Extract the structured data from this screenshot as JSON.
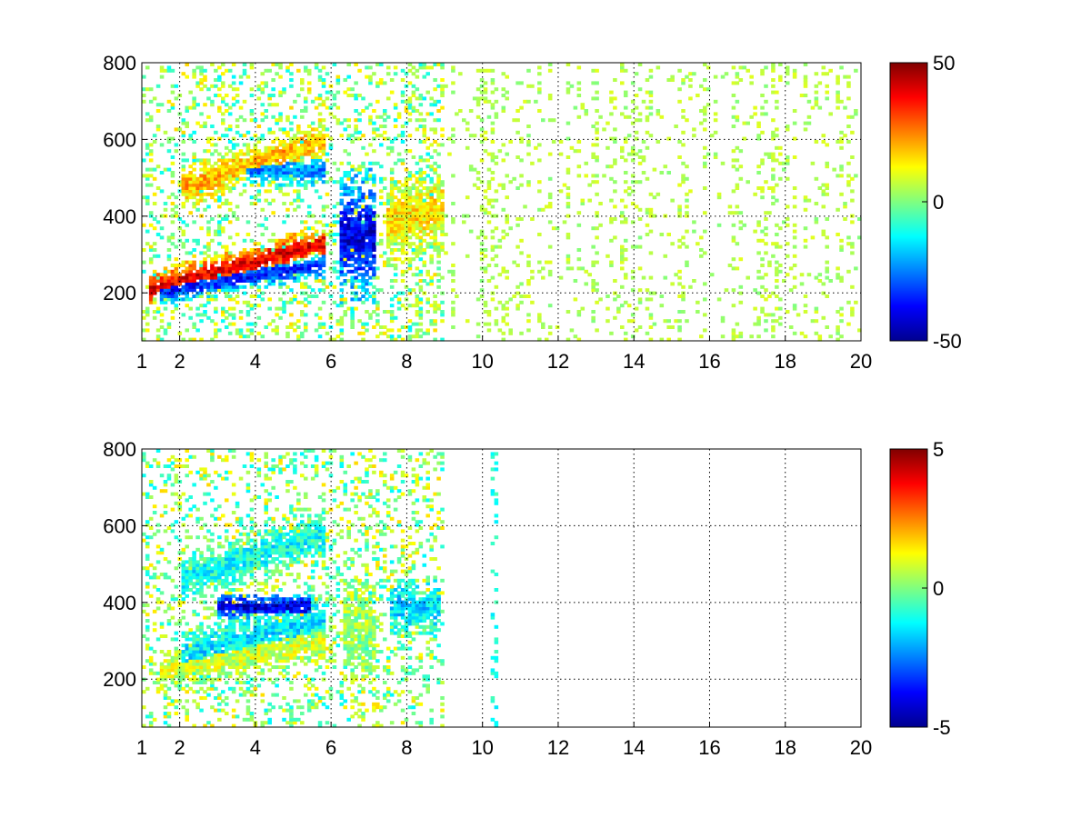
{
  "chart_data": [
    {
      "type": "heatmap",
      "title": "",
      "xlabel": "",
      "ylabel": "",
      "xlim": [
        1,
        20
      ],
      "ylim": [
        75,
        800
      ],
      "x_ticks": [
        1,
        2,
        4,
        6,
        8,
        10,
        12,
        14,
        16,
        18,
        20
      ],
      "y_ticks": [
        200,
        400,
        600,
        800
      ],
      "grid": true,
      "colormap": "jet",
      "colorbar": {
        "range": [
          -50,
          50
        ],
        "ticks": [
          -50,
          0,
          50
        ],
        "tick_labels": [
          "-50",
          "0",
          "50"
        ]
      },
      "features": [
        {
          "x": [
            1.2,
            5.8
          ],
          "y_start": 210,
          "y_end": 330,
          "value": 40,
          "width": 30
        },
        {
          "x": [
            1.5,
            5.8
          ],
          "y_start": 205,
          "y_end": 275,
          "value": -35,
          "width": 22
        },
        {
          "x": [
            2.0,
            5.8
          ],
          "y_start": 470,
          "y_end": 600,
          "value": 20,
          "width": 35
        },
        {
          "x": [
            3.8,
            5.8
          ],
          "y_start": 520,
          "y_end": 520,
          "value": -25,
          "width": 25
        },
        {
          "x": [
            6.2,
            7.2
          ],
          "y_start": 350,
          "y_end": 350,
          "value": -40,
          "width": 110
        },
        {
          "x": [
            7.5,
            9.0
          ],
          "y_start": 380,
          "y_end": 420,
          "value": 15,
          "width": 70
        }
      ],
      "sparse_region": {
        "x": [
          8,
          20
        ],
        "values": [
          0,
          10
        ],
        "density": 0.12
      }
    },
    {
      "type": "heatmap",
      "title": "",
      "xlabel": "",
      "ylabel": "",
      "xlim": [
        1,
        20
      ],
      "ylim": [
        75,
        800
      ],
      "x_ticks": [
        1,
        2,
        4,
        6,
        8,
        10,
        12,
        14,
        16,
        18,
        20
      ],
      "y_ticks": [
        200,
        400,
        600,
        800
      ],
      "grid": true,
      "colormap": "jet",
      "colorbar": {
        "range": [
          -5,
          5
        ],
        "ticks": [
          -5,
          0,
          5
        ],
        "tick_labels": [
          "-5",
          "0",
          "5"
        ]
      },
      "features": [
        {
          "x": [
            1.5,
            5.8
          ],
          "y_start": 220,
          "y_end": 300,
          "value": 0.8,
          "width": 35
        },
        {
          "x": [
            2.0,
            5.8
          ],
          "y_start": 260,
          "y_end": 360,
          "value": -1.5,
          "width": 40
        },
        {
          "x": [
            3.0,
            5.5
          ],
          "y_start": 390,
          "y_end": 390,
          "value": -4.2,
          "width": 22
        },
        {
          "x": [
            2.0,
            5.8
          ],
          "y_start": 460,
          "y_end": 580,
          "value": -1.2,
          "width": 40
        },
        {
          "x": [
            6.3,
            7.2
          ],
          "y_start": 330,
          "y_end": 330,
          "value": 0.3,
          "width": 90
        },
        {
          "x": [
            7.6,
            8.9
          ],
          "y_start": 390,
          "y_end": 390,
          "value": -1.6,
          "width": 50
        }
      ],
      "sparse_region": {
        "x": [
          10.2,
          10.4
        ],
        "values": [
          -1.5,
          -0.5
        ],
        "density": 0.5
      }
    }
  ]
}
